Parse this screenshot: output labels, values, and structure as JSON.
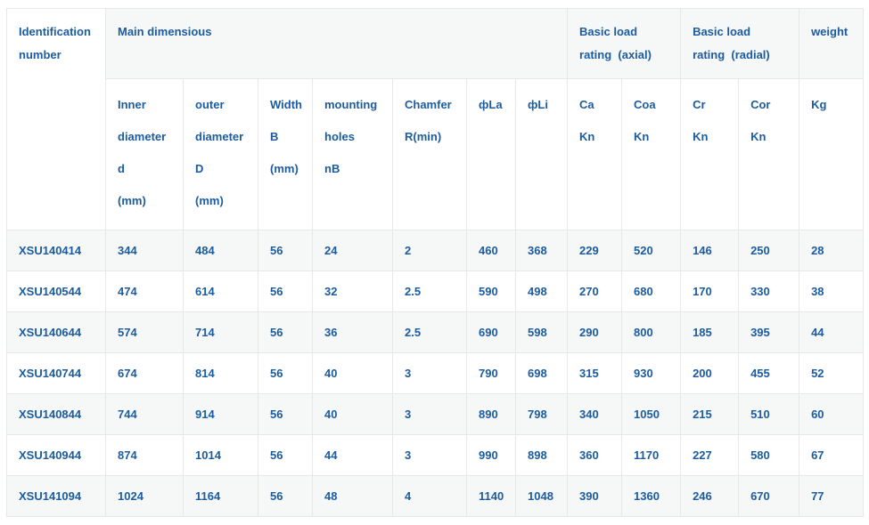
{
  "colors": {
    "text_blue": "#1c5ca0",
    "stripe_bg": "#f6f7f7",
    "header_group_bg": "#f6f7f7",
    "border": "#e8e8e8",
    "page_bg": "#ffffff"
  },
  "table": {
    "group_headers": [
      "Identification\nnumber",
      "Main dimensious",
      "Basic load\nrating  (axial)",
      "Basic load\nrating  (radial)",
      "weight"
    ],
    "sub_headers": [
      "Inner diameter\nd\n(mm)",
      "outer diameter\nD\n(mm)",
      "Width\nB\n(mm)",
      "mounting holes\nnB",
      "Chamfer\nR(min)",
      "фLa",
      "фLi",
      "Ca\nKn",
      "Coa\nKn",
      "Cr\nKn",
      "Cor\nKn",
      "Kg"
    ],
    "rows": [
      [
        "XSU140414",
        "344",
        "484",
        "56",
        "24",
        "2",
        "460",
        "368",
        "229",
        "520",
        "146",
        "250",
        "28"
      ],
      [
        "XSU140544",
        "474",
        "614",
        "56",
        "32",
        "2.5",
        "590",
        "498",
        "270",
        "680",
        "170",
        "330",
        "38"
      ],
      [
        "XSU140644",
        "574",
        "714",
        "56",
        "36",
        "2.5",
        "690",
        "598",
        "290",
        "800",
        "185",
        "395",
        "44"
      ],
      [
        "XSU140744",
        "674",
        "814",
        "56",
        "40",
        "3",
        "790",
        "698",
        "315",
        "930",
        "200",
        "455",
        "52"
      ],
      [
        "XSU140844",
        "744",
        "914",
        "56",
        "40",
        "3",
        "890",
        "798",
        "340",
        "1050",
        "215",
        "510",
        "60"
      ],
      [
        "XSU140944",
        "874",
        "1014",
        "56",
        "44",
        "3",
        "990",
        "898",
        "360",
        "1170",
        "227",
        "580",
        "67"
      ],
      [
        "XSU141094",
        "1024",
        "1164",
        "56",
        "48",
        "4",
        "1140",
        "1048",
        "390",
        "1360",
        "246",
        "670",
        "77"
      ]
    ]
  }
}
